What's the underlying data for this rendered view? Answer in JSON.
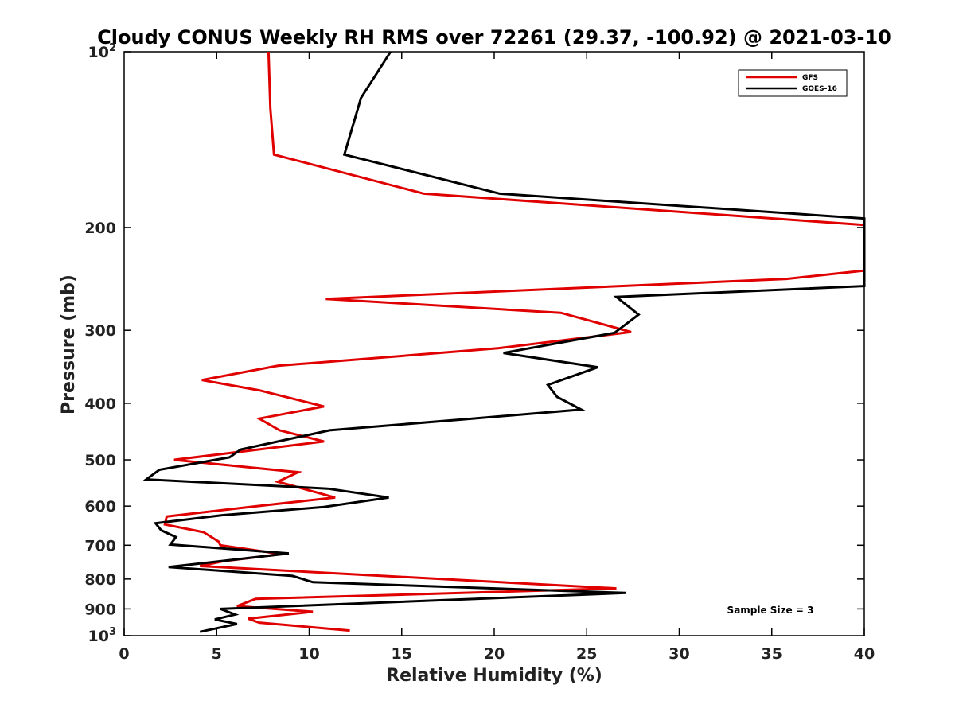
{
  "chart_data": {
    "type": "line",
    "title": "Cloudy CONUS Weekly RH RMS over 72261 (29.37, -100.92) @ 2021-03-10",
    "xlabel": "Relative Humidity (%)",
    "ylabel": "Pressure (mb)",
    "xlim": [
      0,
      40
    ],
    "ylim": [
      100,
      1000
    ],
    "yscale": "log",
    "y_reversed": true,
    "grid": false,
    "legend_position": "top-right",
    "x_ticks": [
      0,
      5,
      10,
      15,
      20,
      25,
      30,
      35,
      40
    ],
    "x_tick_labels": [
      "0",
      "5",
      "10",
      "15",
      "20",
      "25",
      "30",
      "35",
      "40"
    ],
    "y_ticks": [
      {
        "value": 100,
        "base": "10",
        "exp": "2"
      },
      {
        "value": 200,
        "label": "200"
      },
      {
        "value": 300,
        "label": "300"
      },
      {
        "value": 400,
        "label": "400"
      },
      {
        "value": 500,
        "label": "500"
      },
      {
        "value": 600,
        "label": "600"
      },
      {
        "value": 700,
        "label": "700"
      },
      {
        "value": 800,
        "label": "800"
      },
      {
        "value": 900,
        "label": "900"
      },
      {
        "value": 1000,
        "base": "10",
        "exp": "3"
      }
    ],
    "annotation": "Sample Size = 3",
    "series": [
      {
        "name": "GFS",
        "color": "#e00000",
        "points": [
          [
            7.8,
            100
          ],
          [
            7.9,
            125
          ],
          [
            8.1,
            150
          ],
          [
            16.2,
            175
          ],
          [
            40.0,
            198
          ],
          [
            40.0,
            237
          ],
          [
            35.8,
            245
          ],
          [
            10.9,
            265
          ],
          [
            23.6,
            280
          ],
          [
            27.4,
            302
          ],
          [
            20.2,
            322
          ],
          [
            8.3,
            345
          ],
          [
            4.2,
            365
          ],
          [
            7.3,
            380
          ],
          [
            10.8,
            405
          ],
          [
            7.3,
            425
          ],
          [
            8.4,
            445
          ],
          [
            10.8,
            465
          ],
          [
            2.7,
            500
          ],
          [
            9.4,
            525
          ],
          [
            8.3,
            545
          ],
          [
            11.4,
            580
          ],
          [
            7.6,
            598
          ],
          [
            2.3,
            625
          ],
          [
            2.2,
            645
          ],
          [
            4.3,
            665
          ],
          [
            5.1,
            690
          ],
          [
            5.2,
            700
          ],
          [
            8.5,
            725
          ],
          [
            5.4,
            745
          ],
          [
            4.1,
            760
          ],
          [
            26.6,
            830
          ],
          [
            7.1,
            865
          ],
          [
            6.1,
            890
          ],
          [
            10.2,
            910
          ],
          [
            6.7,
            935
          ],
          [
            7.3,
            950
          ],
          [
            12.2,
            980
          ]
        ]
      },
      {
        "name": "GOES-16",
        "color": "#000000",
        "points": [
          [
            14.4,
            100
          ],
          [
            12.8,
            120
          ],
          [
            11.9,
            150
          ],
          [
            20.3,
            175
          ],
          [
            40.0,
            193
          ],
          [
            40.0,
            252
          ],
          [
            26.6,
            263
          ],
          [
            27.8,
            282
          ],
          [
            26.5,
            303
          ],
          [
            20.5,
            328
          ],
          [
            25.6,
            347
          ],
          [
            22.9,
            372
          ],
          [
            23.4,
            390
          ],
          [
            24.7,
            410
          ],
          [
            18.8,
            425
          ],
          [
            11.1,
            445
          ],
          [
            6.3,
            480
          ],
          [
            5.7,
            495
          ],
          [
            1.9,
            520
          ],
          [
            1.2,
            540
          ],
          [
            11.0,
            560
          ],
          [
            14.3,
            580
          ],
          [
            10.8,
            602
          ],
          [
            5.3,
            622
          ],
          [
            1.7,
            642
          ],
          [
            2.0,
            660
          ],
          [
            2.8,
            678
          ],
          [
            2.5,
            698
          ],
          [
            8.9,
            723
          ],
          [
            2.4,
            763
          ],
          [
            9.1,
            790
          ],
          [
            10.2,
            810
          ],
          [
            27.1,
            845
          ],
          [
            5.2,
            900
          ],
          [
            6.0,
            920
          ],
          [
            4.9,
            938
          ],
          [
            6.1,
            955
          ],
          [
            4.1,
            985
          ]
        ]
      }
    ]
  }
}
